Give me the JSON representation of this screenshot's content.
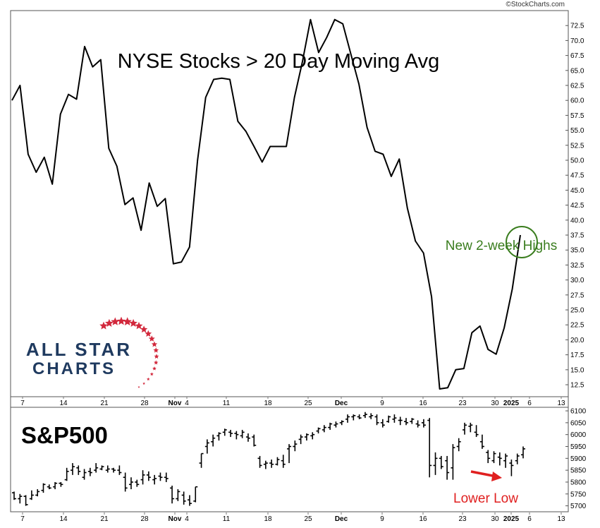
{
  "watermark": "©StockCharts.com",
  "logo_text": [
    "ALL STAR",
    "CHARTS"
  ],
  "colors": {
    "line": "#000000",
    "annotation_green": "#3a7d1e",
    "annotation_red": "#e02020",
    "logo_navy": "#1f3a5f",
    "logo_star": "#d2283c"
  },
  "chart_data": [
    {
      "type": "line",
      "title": "NYSE Stocks > 20 Day Moving Avg",
      "y_ticks": [
        "72.5",
        "70.0",
        "67.5",
        "65.0",
        "62.5",
        "60.0",
        "57.5",
        "55.0",
        "52.5",
        "50.0",
        "47.5",
        "45.0",
        "42.5",
        "40.0",
        "37.5",
        "35.0",
        "32.5",
        "30.0",
        "27.5",
        "25.0",
        "22.5",
        "20.0",
        "17.5",
        "15.0",
        "12.5"
      ],
      "ylim": [
        10.5,
        75
      ],
      "x_labels": [
        "7",
        "14",
        "21",
        "28",
        "Nov",
        "4",
        "11",
        "18",
        "25",
        "Dec",
        "9",
        "16",
        "23",
        "30",
        "2025",
        "6",
        "13"
      ],
      "values": [
        60,
        62.5,
        51,
        48,
        50.5,
        46,
        57.7,
        61,
        60.2,
        69,
        65.6,
        66.8,
        52,
        49,
        42.6,
        43.7,
        38.3,
        46.2,
        42.3,
        43.6,
        32.7,
        33,
        35.5,
        50,
        60.5,
        63.5,
        63.7,
        63.5,
        56.5,
        54.8,
        52.3,
        49.7,
        52.3,
        52.3,
        52.3,
        60.5,
        66.5,
        73.5,
        68,
        70.5,
        73.5,
        72.8,
        67.7,
        62.7,
        55.5,
        51.5,
        51,
        47.3,
        50.2,
        42,
        36.5,
        34.5,
        27.2,
        11.8,
        12,
        15,
        15.2,
        21.2,
        22.3,
        18.4,
        17.6,
        22,
        28.5,
        37.5
      ],
      "annotations": [
        {
          "text": "New 2-week Highs",
          "target_index": 63
        }
      ]
    },
    {
      "type": "ohlc",
      "title": "S&P500",
      "y_ticks": [
        "6100",
        "6050",
        "6000",
        "5950",
        "5900",
        "5850",
        "5800",
        "5750",
        "5700"
      ],
      "ylim": [
        5675,
        6115
      ],
      "x_labels": [
        "7",
        "14",
        "21",
        "28",
        "Nov",
        "4",
        "11",
        "18",
        "25",
        "Dec",
        "9",
        "16",
        "23",
        "30",
        "2025",
        "6",
        "13"
      ],
      "bars": [
        [
          5755,
          5760,
          5725,
          5730
        ],
        [
          5730,
          5750,
          5710,
          5740
        ],
        [
          5740,
          5745,
          5700,
          5705
        ],
        [
          5730,
          5765,
          5725,
          5745
        ],
        [
          5745,
          5770,
          5740,
          5760
        ],
        [
          5765,
          5795,
          5755,
          5790
        ],
        [
          5780,
          5790,
          5770,
          5775
        ],
        [
          5780,
          5800,
          5770,
          5795
        ],
        [
          5795,
          5800,
          5780,
          5790
        ],
        [
          5810,
          5860,
          5805,
          5845
        ],
        [
          5850,
          5880,
          5830,
          5865
        ],
        [
          5860,
          5870,
          5830,
          5845
        ],
        [
          5820,
          5855,
          5810,
          5840
        ],
        [
          5845,
          5860,
          5825,
          5840
        ],
        [
          5850,
          5880,
          5840,
          5860
        ],
        [
          5855,
          5870,
          5850,
          5865
        ],
        [
          5850,
          5870,
          5840,
          5855
        ],
        [
          5855,
          5860,
          5840,
          5850
        ],
        [
          5850,
          5870,
          5830,
          5840
        ],
        [
          5820,
          5840,
          5760,
          5775
        ],
        [
          5790,
          5820,
          5770,
          5800
        ],
        [
          5800,
          5810,
          5780,
          5790
        ],
        [
          5810,
          5850,
          5790,
          5830
        ],
        [
          5830,
          5845,
          5805,
          5820
        ],
        [
          5810,
          5830,
          5790,
          5815
        ],
        [
          5825,
          5840,
          5805,
          5820
        ],
        [
          5820,
          5840,
          5800,
          5815
        ],
        [
          5775,
          5785,
          5710,
          5730
        ],
        [
          5730,
          5770,
          5720,
          5760
        ],
        [
          5745,
          5760,
          5705,
          5720
        ],
        [
          5725,
          5745,
          5700,
          5710
        ],
        [
          5720,
          5780,
          5715,
          5780
        ],
        [
          5880,
          5920,
          5860,
          5920
        ],
        [
          5950,
          5980,
          5920,
          5965
        ],
        [
          5970,
          6000,
          5950,
          5985
        ],
        [
          5995,
          6010,
          5975,
          6005
        ],
        [
          6010,
          6025,
          5995,
          6020
        ],
        [
          6010,
          6020,
          5990,
          6005
        ],
        [
          6005,
          6015,
          5980,
          6000
        ],
        [
          5995,
          6020,
          5985,
          6010
        ],
        [
          5990,
          6005,
          5970,
          5985
        ],
        [
          5990,
          6000,
          5950,
          5955
        ],
        [
          5900,
          5910,
          5860,
          5870
        ],
        [
          5875,
          5890,
          5855,
          5880
        ],
        [
          5880,
          5895,
          5860,
          5875
        ],
        [
          5875,
          5905,
          5870,
          5895
        ],
        [
          5890,
          5915,
          5860,
          5875
        ],
        [
          5940,
          5960,
          5880,
          5950
        ],
        [
          5950,
          5975,
          5930,
          5960
        ],
        [
          5980,
          6000,
          5960,
          5990
        ],
        [
          5990,
          6005,
          5975,
          6000
        ],
        [
          5995,
          6010,
          5980,
          6000
        ],
        [
          6015,
          6030,
          6005,
          6025
        ],
        [
          6020,
          6040,
          6010,
          6030
        ],
        [
          6030,
          6050,
          6020,
          6045
        ],
        [
          6040,
          6055,
          6030,
          6045
        ],
        [
          6050,
          6060,
          6040,
          6055
        ],
        [
          6065,
          6085,
          6050,
          6075
        ],
        [
          6075,
          6085,
          6060,
          6080
        ],
        [
          6075,
          6085,
          6065,
          6070
        ],
        [
          6080,
          6095,
          6070,
          6085
        ],
        [
          6075,
          6090,
          6065,
          6080
        ],
        [
          6075,
          6085,
          6040,
          6050
        ],
        [
          6050,
          6065,
          6030,
          6040
        ],
        [
          6055,
          6080,
          6050,
          6075
        ],
        [
          6065,
          6085,
          6050,
          6070
        ],
        [
          6060,
          6075,
          6040,
          6060
        ],
        [
          6055,
          6070,
          6040,
          6050
        ],
        [
          6055,
          6070,
          6045,
          6065
        ],
        [
          6045,
          6060,
          6030,
          6040
        ],
        [
          6050,
          6065,
          6030,
          6040
        ],
        [
          6060,
          6070,
          5820,
          5870
        ],
        [
          5870,
          5925,
          5830,
          5900
        ],
        [
          5900,
          5910,
          5855,
          5865
        ],
        [
          5890,
          5910,
          5810,
          5840
        ],
        [
          5860,
          5960,
          5810,
          5945
        ],
        [
          5950,
          5985,
          5930,
          5970
        ],
        [
          6020,
          6050,
          6000,
          6040
        ],
        [
          6035,
          6050,
          6010,
          6040
        ],
        [
          6010,
          6040,
          5990,
          6000
        ],
        [
          5970,
          6000,
          5940,
          5950
        ],
        [
          5925,
          5935,
          5880,
          5900
        ],
        [
          5890,
          5930,
          5880,
          5920
        ],
        [
          5905,
          5925,
          5870,
          5900
        ],
        [
          5890,
          5920,
          5860,
          5910
        ],
        [
          5880,
          5895,
          5825,
          5870
        ],
        [
          5890,
          5920,
          5875,
          5910
        ],
        [
          5915,
          5950,
          5900,
          5940
        ]
      ],
      "annotations": [
        {
          "text": "Lower Low",
          "target_index": 86
        }
      ]
    }
  ]
}
